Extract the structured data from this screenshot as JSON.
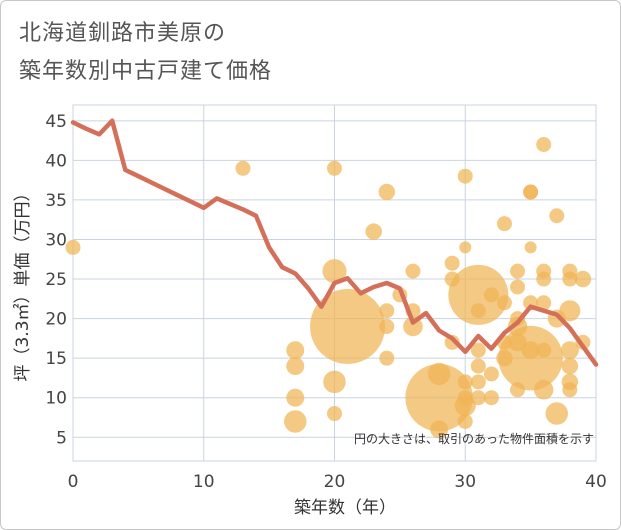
{
  "title_line1": "北海道釧路市美原の",
  "title_line2": "築年数別中古戸建て価格",
  "chart_data": {
    "type": "scatter",
    "title": "北海道釧路市美原の築年数別中古戸建て価格",
    "xlabel": "築年数（年）",
    "ylabel": "坪（3.3㎡）単価（万円）",
    "xlim": [
      0,
      40
    ],
    "ylim": [
      2,
      47
    ],
    "xticks": [
      0,
      10,
      20,
      30,
      40
    ],
    "yticks": [
      5,
      10,
      15,
      20,
      25,
      30,
      35,
      40,
      45
    ],
    "grid": true,
    "note": "円の大きさは、取引のあった物件面積を示す",
    "colors": {
      "bubble": "#f0b454",
      "line": "#d4705a",
      "grid": "#c9d4df"
    },
    "scatter": [
      {
        "x": 0,
        "y": 29,
        "s": 1
      },
      {
        "x": 13,
        "y": 39,
        "s": 1
      },
      {
        "x": 17,
        "y": 16,
        "s": 1.2
      },
      {
        "x": 17,
        "y": 14,
        "s": 1.2
      },
      {
        "x": 17,
        "y": 10,
        "s": 1.2
      },
      {
        "x": 17,
        "y": 7,
        "s": 1.5
      },
      {
        "x": 20,
        "y": 39,
        "s": 1
      },
      {
        "x": 20,
        "y": 26,
        "s": 1.6
      },
      {
        "x": 20,
        "y": 12,
        "s": 1.5
      },
      {
        "x": 20,
        "y": 8,
        "s": 1
      },
      {
        "x": 21,
        "y": 19,
        "s": 5
      },
      {
        "x": 23,
        "y": 31,
        "s": 1.1
      },
      {
        "x": 24,
        "y": 36,
        "s": 1.1
      },
      {
        "x": 24,
        "y": 21,
        "s": 1
      },
      {
        "x": 24,
        "y": 19,
        "s": 1
      },
      {
        "x": 24,
        "y": 15,
        "s": 1
      },
      {
        "x": 25,
        "y": 23,
        "s": 1
      },
      {
        "x": 26,
        "y": 26,
        "s": 1
      },
      {
        "x": 26,
        "y": 21,
        "s": 1
      },
      {
        "x": 26,
        "y": 19,
        "s": 1.3
      },
      {
        "x": 28,
        "y": 13,
        "s": 1.5
      },
      {
        "x": 28,
        "y": 10,
        "s": 4.5
      },
      {
        "x": 28,
        "y": 6,
        "s": 1.2
      },
      {
        "x": 29,
        "y": 27,
        "s": 1
      },
      {
        "x": 29,
        "y": 25,
        "s": 1
      },
      {
        "x": 29,
        "y": 17,
        "s": 1
      },
      {
        "x": 30,
        "y": 38,
        "s": 1
      },
      {
        "x": 30,
        "y": 29,
        "s": 0.8
      },
      {
        "x": 30,
        "y": 12,
        "s": 1
      },
      {
        "x": 30,
        "y": 10,
        "s": 1
      },
      {
        "x": 30,
        "y": 9,
        "s": 1.4
      },
      {
        "x": 30,
        "y": 7,
        "s": 1
      },
      {
        "x": 31,
        "y": 23,
        "s": 4
      },
      {
        "x": 31,
        "y": 21,
        "s": 1
      },
      {
        "x": 31,
        "y": 16,
        "s": 1
      },
      {
        "x": 31,
        "y": 14,
        "s": 1
      },
      {
        "x": 31,
        "y": 12,
        "s": 1
      },
      {
        "x": 31,
        "y": 10,
        "s": 1
      },
      {
        "x": 32,
        "y": 23,
        "s": 1
      },
      {
        "x": 32,
        "y": 13,
        "s": 1
      },
      {
        "x": 32,
        "y": 10,
        "s": 1
      },
      {
        "x": 33,
        "y": 32,
        "s": 1
      },
      {
        "x": 33,
        "y": 22,
        "s": 1
      },
      {
        "x": 33,
        "y": 17,
        "s": 1
      },
      {
        "x": 33,
        "y": 15,
        "s": 1.1
      },
      {
        "x": 34,
        "y": 26,
        "s": 1
      },
      {
        "x": 34,
        "y": 24,
        "s": 1
      },
      {
        "x": 34,
        "y": 20,
        "s": 1
      },
      {
        "x": 34,
        "y": 19,
        "s": 1.3
      },
      {
        "x": 34,
        "y": 17,
        "s": 1.2
      },
      {
        "x": 34,
        "y": 11,
        "s": 1
      },
      {
        "x": 35,
        "y": 36,
        "s": 1
      },
      {
        "x": 35,
        "y": 36,
        "s": 1
      },
      {
        "x": 35,
        "y": 29,
        "s": 0.8
      },
      {
        "x": 35,
        "y": 22,
        "s": 1
      },
      {
        "x": 35,
        "y": 16,
        "s": 1.2
      },
      {
        "x": 35,
        "y": 15,
        "s": 4.3
      },
      {
        "x": 36,
        "y": 42,
        "s": 1
      },
      {
        "x": 36,
        "y": 26,
        "s": 1
      },
      {
        "x": 36,
        "y": 25,
        "s": 1
      },
      {
        "x": 36,
        "y": 22,
        "s": 1
      },
      {
        "x": 36,
        "y": 16,
        "s": 1
      },
      {
        "x": 36,
        "y": 11,
        "s": 1.3
      },
      {
        "x": 37,
        "y": 33,
        "s": 1
      },
      {
        "x": 37,
        "y": 20,
        "s": 1.2
      },
      {
        "x": 37,
        "y": 8,
        "s": 1.5
      },
      {
        "x": 38,
        "y": 26,
        "s": 1
      },
      {
        "x": 38,
        "y": 25,
        "s": 1
      },
      {
        "x": 38,
        "y": 21,
        "s": 1.4
      },
      {
        "x": 38,
        "y": 16,
        "s": 1.2
      },
      {
        "x": 38,
        "y": 14,
        "s": 1.1
      },
      {
        "x": 38,
        "y": 12,
        "s": 1.1
      },
      {
        "x": 38,
        "y": 11,
        "s": 1
      },
      {
        "x": 39,
        "y": 25,
        "s": 1.1
      },
      {
        "x": 39,
        "y": 17,
        "s": 1
      }
    ],
    "line": {
      "x": [
        0,
        1,
        2,
        3,
        4,
        5,
        6,
        7,
        8,
        9,
        10,
        11,
        12,
        13,
        14,
        15,
        16,
        17,
        18,
        19,
        20,
        21,
        22,
        23,
        24,
        25,
        26,
        27,
        28,
        29,
        30,
        31,
        32,
        33,
        34,
        35,
        36,
        37,
        38,
        39,
        40
      ],
      "y": [
        44.8,
        44,
        43.3,
        45,
        38.8,
        38,
        37.2,
        36.4,
        35.6,
        34.8,
        34,
        35.2,
        34.5,
        33.8,
        33,
        29,
        26.5,
        25.7,
        23.8,
        21.5,
        24.5,
        25.1,
        23.2,
        24,
        24.5,
        23.8,
        19.5,
        20.7,
        18.5,
        17.5,
        15.8,
        17.8,
        16.2,
        18.2,
        19.5,
        21.5,
        21,
        20.5,
        18.8,
        16.5,
        14.2
      ]
    }
  }
}
